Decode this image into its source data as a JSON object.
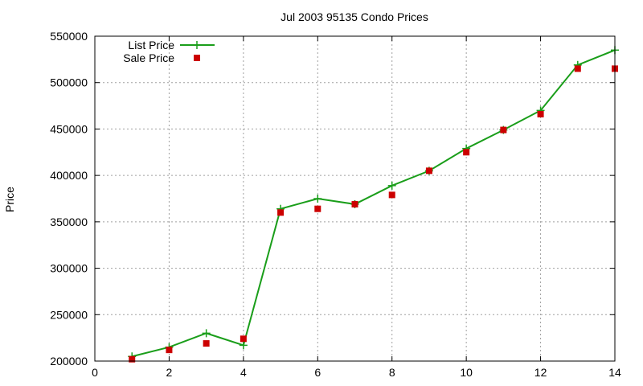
{
  "chart_data": {
    "type": "line",
    "title": "Jul 2003 95135 Condo Prices",
    "xlabel": "",
    "ylabel": "Price",
    "xlim": [
      0,
      14
    ],
    "ylim": [
      200000,
      550000
    ],
    "xticks": [
      0,
      2,
      4,
      6,
      8,
      10,
      12,
      14
    ],
    "yticks": [
      200000,
      250000,
      300000,
      350000,
      400000,
      450000,
      500000,
      550000
    ],
    "grid": true,
    "legend_position": "top-left",
    "series": [
      {
        "name": "List Price",
        "style": "line+cross",
        "color": "#1a9e1a",
        "x": [
          1,
          2,
          3,
          4,
          5,
          6,
          7,
          8,
          9,
          10,
          11,
          12,
          13,
          14
        ],
        "y": [
          205000,
          215000,
          230000,
          217000,
          364000,
          375000,
          369000,
          389000,
          405000,
          429000,
          449000,
          470000,
          519000,
          535000
        ]
      },
      {
        "name": "Sale Price",
        "style": "square",
        "color": "#cc0000",
        "x": [
          1,
          2,
          3,
          4,
          5,
          6,
          7,
          8,
          9,
          10,
          11,
          12,
          13,
          14
        ],
        "y": [
          202000,
          212000,
          219000,
          224000,
          360000,
          364000,
          369000,
          379000,
          405000,
          425000,
          449000,
          466000,
          515000,
          515000
        ]
      }
    ]
  }
}
